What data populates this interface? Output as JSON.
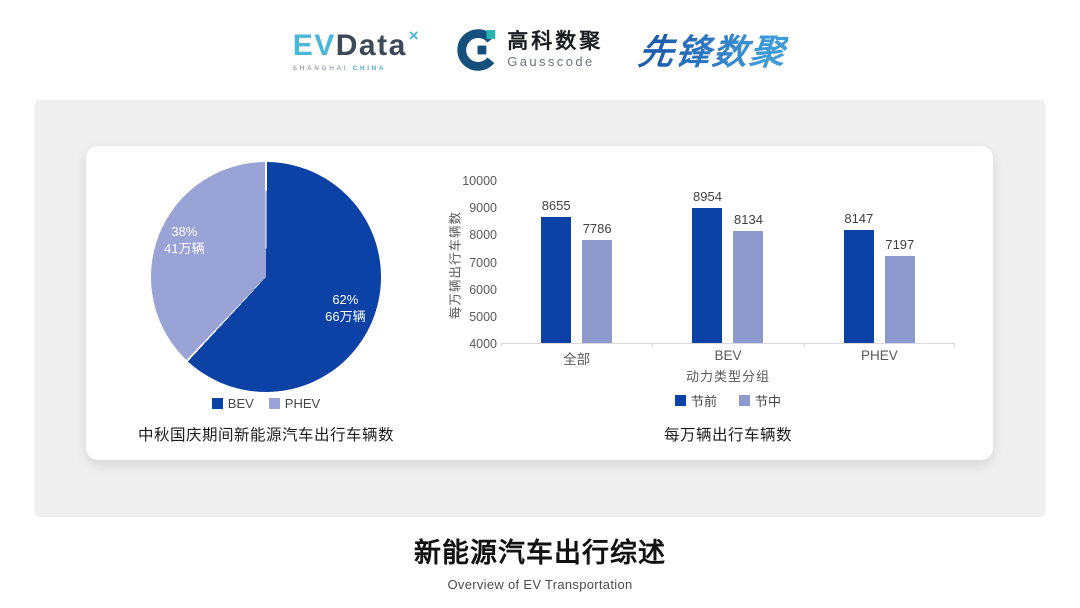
{
  "header": {
    "evdata": {
      "part1": "EV",
      "part2": "Data",
      "mark": "×",
      "subtext1": "SHANGHAI",
      "subtext2": "CHINA"
    },
    "gausscode": {
      "name_cn": "高科数聚",
      "name_en": "Gausscode"
    },
    "pioneer": {
      "name": "先锋数聚"
    }
  },
  "colors": {
    "primary_blue": "#0C42A6",
    "pie_purple": "#99A3D6",
    "bar_purple": "#8E9ACE",
    "axis_gray": "#d9d9d9",
    "brand_cyan": "#49b8d9",
    "brand_navy": "#15507C",
    "brand_teal": "#2BB3B3"
  },
  "chart_data": [
    {
      "type": "pie",
      "title": "中秋国庆期间新能源汽车出行车辆数",
      "labels": [
        "BEV",
        "PHEV"
      ],
      "values_pct": [
        62,
        38
      ],
      "values_amount": [
        "66万辆",
        "41万辆"
      ],
      "slice_labels": [
        {
          "pct": "62%",
          "amount": "66万辆"
        },
        {
          "pct": "38%",
          "amount": "41万辆"
        }
      ],
      "colors": [
        "#0C42A6",
        "#99A3D6"
      ],
      "start_angle": "top",
      "direction": "clockwise",
      "legend_position": "bottom"
    },
    {
      "type": "bar",
      "title": "每万辆出行车辆数",
      "categories": [
        "全部",
        "BEV",
        "PHEV"
      ],
      "series": [
        {
          "name": "节前",
          "color": "#0C42A6",
          "values": [
            8655,
            8954,
            8147
          ]
        },
        {
          "name": "节中",
          "color": "#8E9ACE",
          "values": [
            7786,
            8134,
            7197
          ]
        }
      ],
      "xlabel": "动力类型分组",
      "ylabel": "每万辆出行车辆数",
      "ylim": [
        4000,
        10000
      ],
      "ytick_step": 1000,
      "grid": false,
      "value_labels": true,
      "legend_position": "bottom"
    }
  ],
  "footer": {
    "title": "新能源汽车出行综述",
    "subtitle": "Overview of EV Transportation"
  }
}
